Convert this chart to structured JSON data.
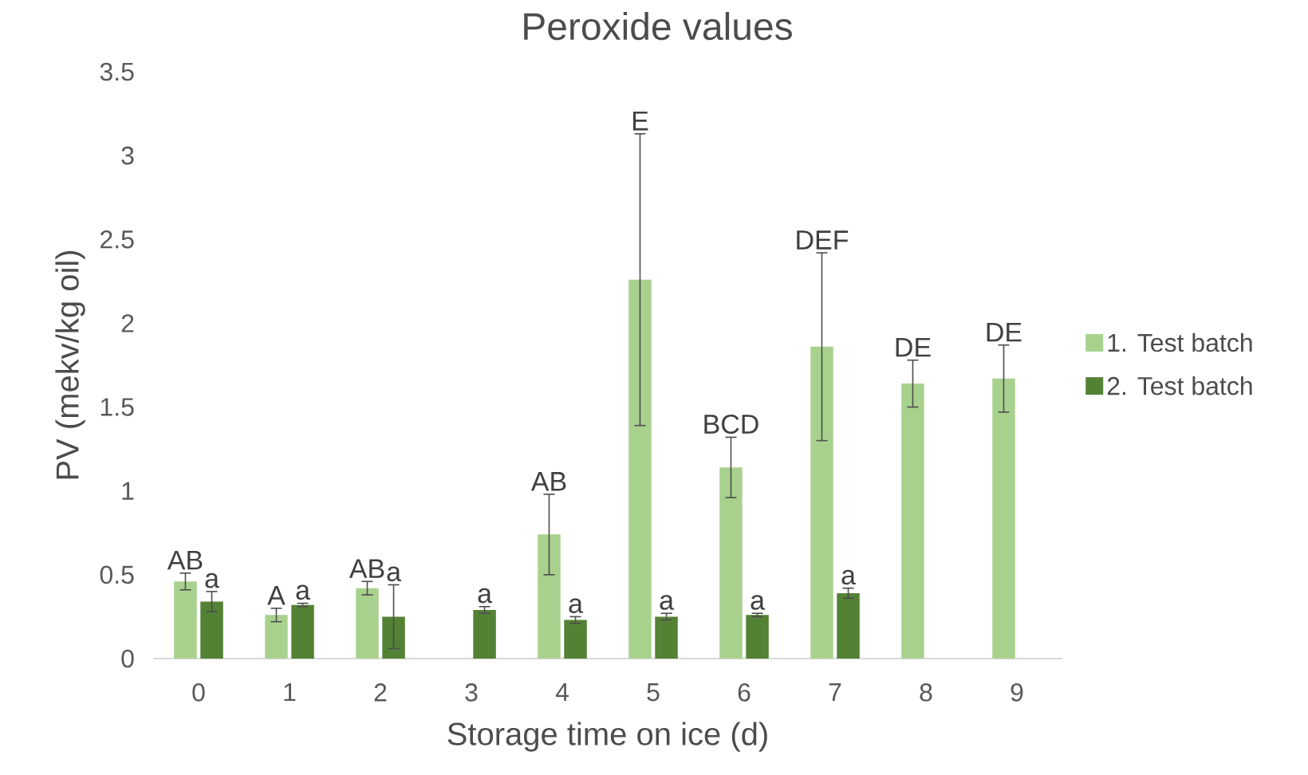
{
  "chart_data": {
    "type": "bar",
    "title": "Peroxide values",
    "xlabel": "Storage time on ice (d)",
    "ylabel": "PV (mekv/kg oil)",
    "categories": [
      "0",
      "1",
      "2",
      "3",
      "4",
      "5",
      "6",
      "7",
      "8",
      "9"
    ],
    "series": [
      {
        "name": "1. Test batch",
        "color": "#a9d18e",
        "values": [
          0.46,
          0.26,
          0.42,
          null,
          0.74,
          2.26,
          1.14,
          1.86,
          1.64,
          1.67
        ],
        "errors": [
          0.05,
          0.04,
          0.04,
          null,
          0.24,
          0.87,
          0.18,
          0.56,
          0.14,
          0.2
        ]
      },
      {
        "name": "2. Test batch",
        "color": "#548235",
        "values": [
          0.34,
          0.32,
          0.25,
          0.29,
          0.23,
          0.25,
          0.26,
          0.39,
          null,
          null
        ],
        "errors": [
          0.06,
          0.01,
          0.19,
          0.02,
          0.02,
          0.02,
          0.01,
          0.03,
          null,
          null
        ]
      }
    ],
    "ylim": [
      0,
      3.5
    ],
    "yticks": [
      0,
      0.5,
      1,
      1.5,
      2,
      2.5,
      3,
      3.5
    ],
    "grid": false,
    "legend": "right",
    "annotations": [
      "AB",
      "a",
      "A",
      "a",
      "AB",
      "a",
      "a",
      "AB",
      "a",
      "E",
      "a",
      "BCD",
      "a",
      "DEF",
      "a",
      "DE",
      "DE"
    ]
  }
}
